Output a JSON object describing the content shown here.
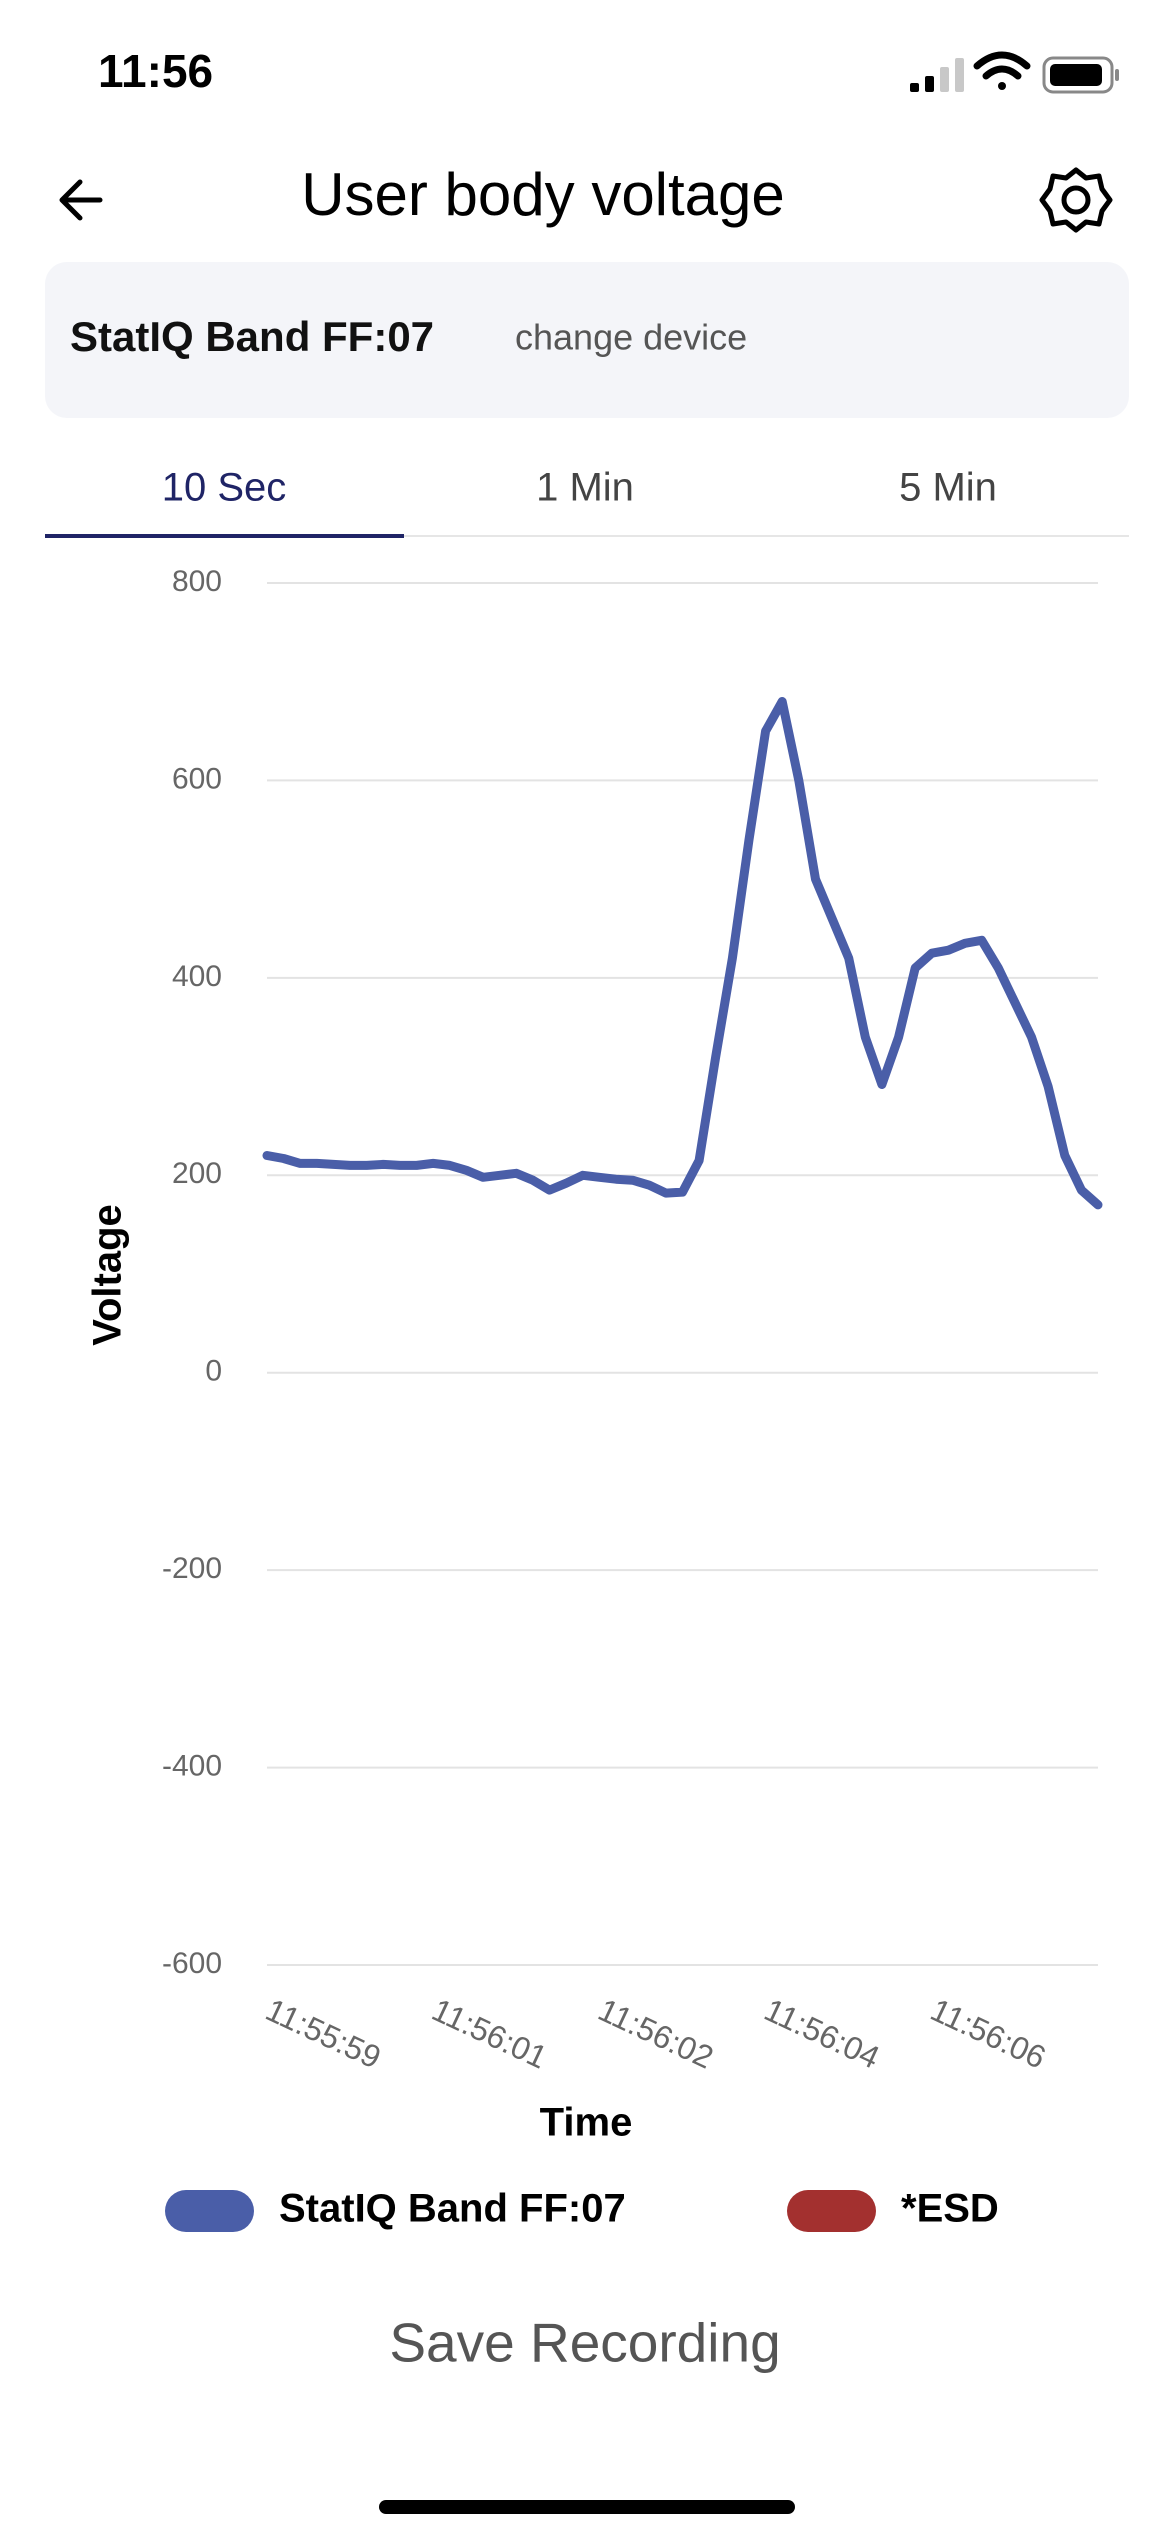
{
  "status": {
    "time": "11:56"
  },
  "header": {
    "title": "User body voltage"
  },
  "device": {
    "name": "StatIQ Band FF:07",
    "action": "change device"
  },
  "tabs": [
    "10 Sec",
    "1 Min",
    "5 Min"
  ],
  "chart_data": {
    "type": "line",
    "x_label": "Time",
    "y_label": "Voltage",
    "categories": [
      "11:55:59",
      null,
      null,
      null,
      null,
      null,
      null,
      null,
      null,
      null,
      "11:56:01",
      null,
      null,
      null,
      null,
      null,
      null,
      null,
      null,
      null,
      "11:56:02",
      null,
      null,
      null,
      null,
      null,
      null,
      null,
      null,
      null,
      "11:56:04",
      null,
      null,
      null,
      null,
      null,
      null,
      null,
      null,
      null,
      "11:56:06",
      null,
      null,
      null,
      null,
      null,
      null,
      null,
      null,
      null,
      null
    ],
    "series": [
      {
        "name": "StatIQ Band FF:07",
        "color": "#4a5ea8",
        "values": [
          220,
          217,
          212,
          212,
          211,
          210,
          210,
          211,
          210,
          210,
          212,
          210,
          205,
          198,
          200,
          202,
          195,
          185,
          192,
          200,
          198,
          196,
          195,
          190,
          182,
          183,
          215,
          320,
          420,
          540,
          650,
          680,
          600,
          500,
          460,
          420,
          340,
          292,
          340,
          410,
          425,
          428,
          435,
          438,
          410,
          375,
          340,
          290,
          220,
          185,
          170
        ]
      },
      {
        "name": "*ESD",
        "color": "#a3302f",
        "values": [
          null,
          null,
          null,
          null,
          null,
          null,
          null,
          null,
          null,
          null,
          null,
          null,
          null,
          null,
          null,
          null,
          null,
          null,
          null,
          null,
          null,
          null,
          null,
          null,
          null,
          null,
          null,
          null,
          null,
          null,
          null,
          null,
          null,
          null,
          null,
          null,
          null,
          null,
          null,
          null,
          null,
          null,
          null,
          null,
          null,
          null,
          null,
          null,
          null,
          null,
          null
        ]
      }
    ],
    "ylim": [
      -600,
      800
    ],
    "yticks": [
      -600,
      -400,
      -200,
      0,
      200,
      400,
      600,
      800
    ],
    "grid": true
  },
  "footer": {
    "button": "Save Recording"
  }
}
